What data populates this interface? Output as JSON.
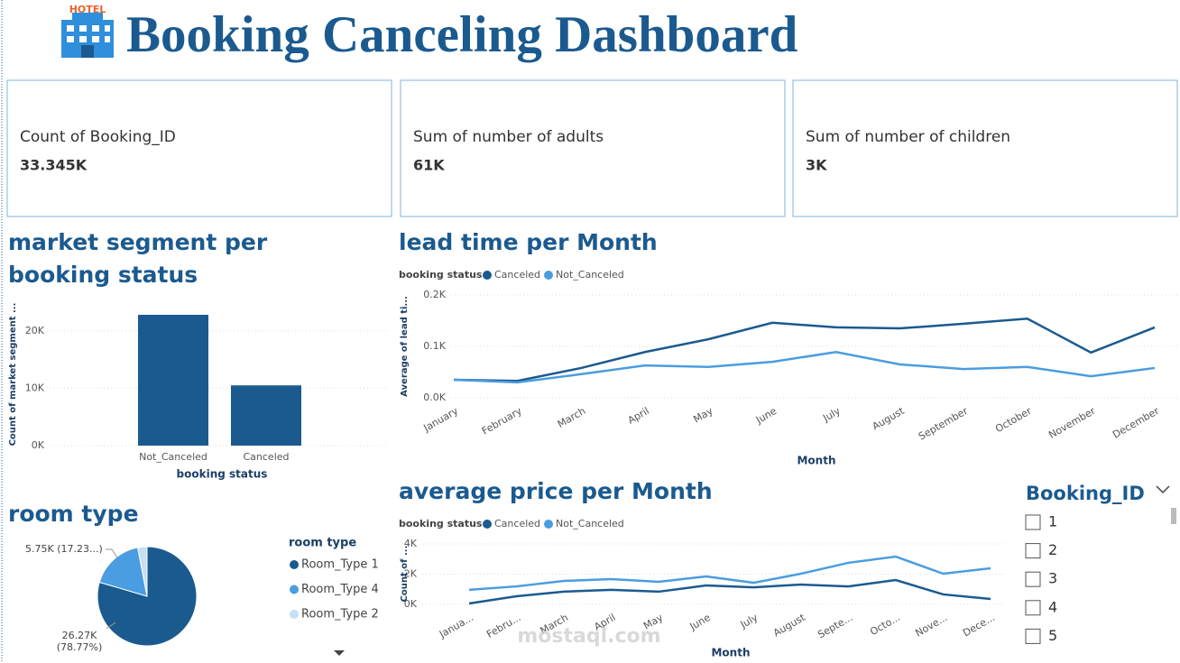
{
  "header": {
    "icon_label": "HOTEL",
    "title": "Booking Canceling Dashboard"
  },
  "cards": [
    {
      "label": "Count of Booking_ID",
      "value": "33.345K"
    },
    {
      "label": "Sum of number of adults",
      "value": "61K"
    },
    {
      "label": "Sum of number of children",
      "value": "3K"
    }
  ],
  "chart_data": [
    {
      "type": "bar",
      "title": "market segment per booking status",
      "categories": [
        "Not_Canceled",
        "Canceled"
      ],
      "values": [
        22800,
        10500
      ],
      "color": "#1b5a8f",
      "ylabel": "Count of market segment ...",
      "xlabel": "booking status",
      "ylim": [
        0,
        25000
      ],
      "yticks": [
        {
          "value": 0,
          "label": "0K"
        },
        {
          "value": 10000,
          "label": "10K"
        },
        {
          "value": 20000,
          "label": "20K"
        }
      ],
      "grid": true
    },
    {
      "type": "line",
      "title": "lead time per Month",
      "legend_title": "booking status",
      "categories": [
        "January",
        "February",
        "March",
        "April",
        "May",
        "June",
        "July",
        "August",
        "September",
        "October",
        "November",
        "December"
      ],
      "series": [
        {
          "name": "Canceled",
          "color": "#1b5a8f",
          "values": [
            35,
            33,
            58,
            89,
            114,
            146,
            137,
            135,
            144,
            154,
            88,
            137
          ]
        },
        {
          "name": "Not_Canceled",
          "color": "#4a9de0",
          "values": [
            35,
            30,
            46,
            63,
            60,
            70,
            89,
            65,
            56,
            60,
            42,
            58
          ]
        }
      ],
      "ylabel": "Average of lead ti...",
      "xlabel": "Month",
      "ylim": [
        0,
        200
      ],
      "yticks": [
        {
          "value": 0,
          "label": "0.0K"
        },
        {
          "value": 100,
          "label": "0.1K"
        },
        {
          "value": 200,
          "label": "0.2K"
        }
      ],
      "grid": true
    },
    {
      "type": "line",
      "title": "average price per Month",
      "legend_title": "booking status",
      "categories": [
        "Janua...",
        "Febru...",
        "March",
        "April",
        "May",
        "June",
        "July",
        "August",
        "Septe...",
        "Octo...",
        "Nove...",
        "Dece..."
      ],
      "series": [
        {
          "name": "Canceled",
          "color": "#1b5a8f",
          "values": [
            60,
            540,
            840,
            960,
            840,
            1250,
            1130,
            1310,
            1190,
            1610,
            660,
            360
          ]
        },
        {
          "name": "Not_Canceled",
          "color": "#4a9de0",
          "values": [
            960,
            1190,
            1550,
            1670,
            1490,
            1850,
            1430,
            2030,
            2750,
            3160,
            2030,
            2390
          ]
        }
      ],
      "ylabel": "Count of ...",
      "xlabel": "Month",
      "ylim": [
        0,
        4000
      ],
      "yticks": [
        {
          "value": 0,
          "label": "0K"
        },
        {
          "value": 2000,
          "label": "2K"
        },
        {
          "value": 4000,
          "label": "4K"
        }
      ],
      "grid": true
    },
    {
      "type": "pie",
      "title": "room type",
      "legend_title": "room type",
      "categories": [
        "Room_Type 1",
        "Room_Type 4",
        "Room_Type 2"
      ],
      "values": [
        26270,
        5750,
        1000
      ],
      "value_labels": [
        "26.27K (78.77%)",
        "5.75K (17.23...)",
        null
      ],
      "colors": [
        "#1b5a8f",
        "#4a9de0",
        "#c6dff3"
      ]
    }
  ],
  "slicer": {
    "title": "Booking_ID",
    "items": [
      "1",
      "2",
      "3",
      "4",
      "5"
    ]
  },
  "watermark": "mostaql.com"
}
